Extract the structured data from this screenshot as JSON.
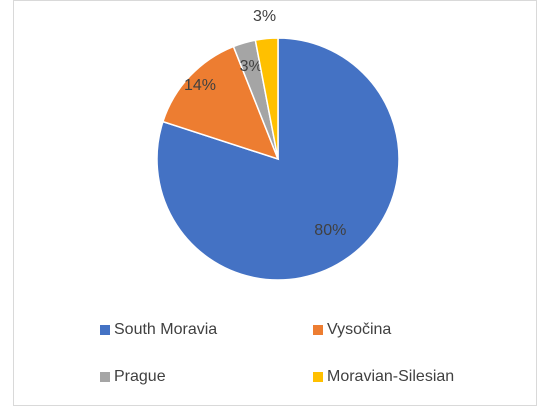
{
  "chart_data": {
    "type": "pie",
    "categories": [
      "South Moravia",
      "Vysočina",
      "Prague",
      "Moravian-Silesian"
    ],
    "values": [
      80,
      14,
      3,
      3
    ],
    "value_labels": [
      "80%",
      "14%",
      "3%",
      "3%"
    ],
    "colors": [
      "#4472c4",
      "#ed7d31",
      "#a5a5a5",
      "#ffc000"
    ],
    "legend": "bottom"
  }
}
